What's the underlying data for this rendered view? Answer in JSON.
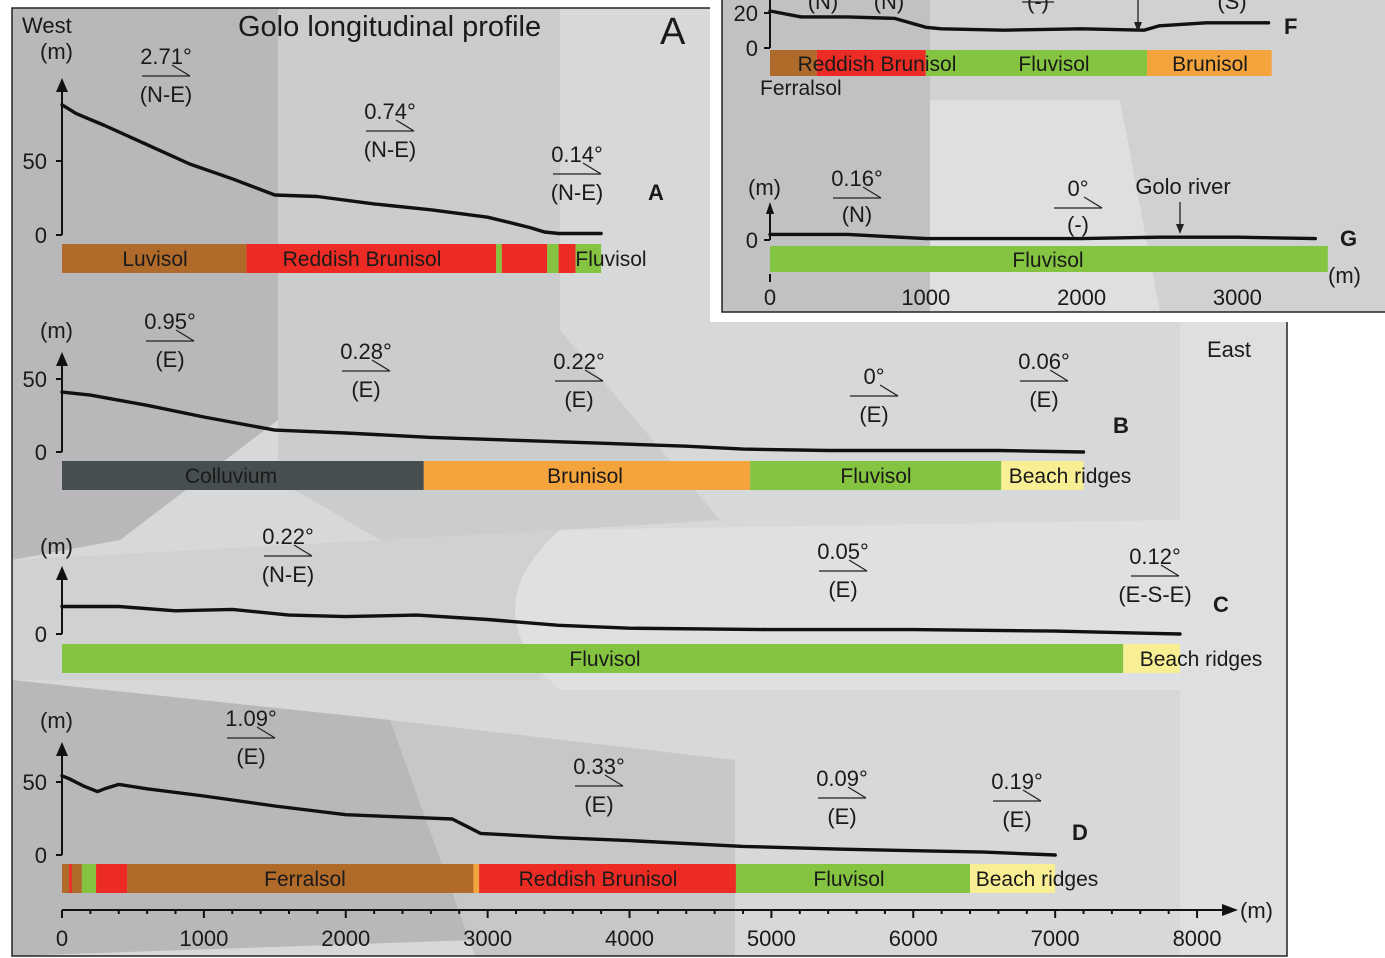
{
  "title": "Golo longitudinal profile",
  "panel_letter": "A",
  "side_labels": {
    "west": "West",
    "east": "East"
  },
  "colors": {
    "Luvisol": "#b06a2a",
    "Reddish Brunisol": "#ec2c24",
    "Fluvisol": "#85c440",
    "Colluvium": "#474e4f",
    "Brunisol": "#f4a43c",
    "Beach ridges": "#f8ef94",
    "Ferralsol": "#b06a2a",
    "bg_dark": "#b8b8ba",
    "bg_mid": "#cbccce",
    "bg_light": "#d7d8da",
    "bg_lighter": "#dfe0e2"
  },
  "main_x_axis": {
    "ticks": [
      "0",
      "1000",
      "2000",
      "3000",
      "4000",
      "5000",
      "6000",
      "7000",
      "8000"
    ],
    "unit": "(m)"
  },
  "inset_x_axis": {
    "ticks": [
      "0",
      "1000",
      "2000",
      "3000"
    ],
    "unit": "(m)"
  },
  "profiles": [
    {
      "id": "A",
      "y_unit": "(m)",
      "y_ticks": [
        "50",
        "0"
      ],
      "slopes": [
        {
          "angle": "2.71°",
          "dir": "(N-E)"
        },
        {
          "angle": "0.74°",
          "dir": "(N-E)"
        },
        {
          "angle": "0.14°",
          "dir": "(N-E)"
        }
      ],
      "soils": [
        {
          "name": "Luvisol",
          "x0": 0,
          "x1": 1300
        },
        {
          "name": "Reddish Brunisol",
          "x0": 1300,
          "x1": 3060
        },
        {
          "name": "Fluvisol",
          "x0": 3060,
          "x1": 3100
        },
        {
          "name": "Reddish Brunisol",
          "x0": 3100,
          "x1": 3420
        },
        {
          "name": "Fluvisol",
          "x0": 3420,
          "x1": 3500
        },
        {
          "name": "Reddish Brunisol",
          "x0": 3500,
          "x1": 3620
        },
        {
          "name": "Fluvisol",
          "x0": 3620,
          "x1": 3800
        }
      ],
      "soil_labels": [
        "Luvisol",
        "Reddish Brunisol",
        "Fluvisol"
      ],
      "elevation": {
        "x": [
          0,
          100,
          300,
          600,
          900,
          1200,
          1500,
          1800,
          2200,
          2600,
          3000,
          3300,
          3400,
          3500,
          3800
        ],
        "y": [
          88,
          82,
          74,
          61,
          48,
          38,
          27,
          26,
          21,
          17,
          12,
          5,
          2,
          1,
          1
        ]
      }
    },
    {
      "id": "B",
      "y_unit": "(m)",
      "y_ticks": [
        "50",
        "0"
      ],
      "slopes": [
        {
          "angle": "0.95°",
          "dir": "(E)"
        },
        {
          "angle": "0.28°",
          "dir": "(E)"
        },
        {
          "angle": "0.22°",
          "dir": "(E)"
        },
        {
          "angle": "0°",
          "dir": "(E)"
        },
        {
          "angle": "0.06°",
          "dir": "(E)"
        }
      ],
      "soils": [
        {
          "name": "Colluvium",
          "x0": 0,
          "x1": 2550
        },
        {
          "name": "Brunisol",
          "x0": 2550,
          "x1": 4850
        },
        {
          "name": "Fluvisol",
          "x0": 4850,
          "x1": 6620
        },
        {
          "name": "Beach ridges",
          "x0": 6620,
          "x1": 7200
        }
      ],
      "soil_labels": [
        "Colluvium",
        "Brunisol",
        "Fluvisol",
        "Beach ridges"
      ],
      "elevation": {
        "x": [
          0,
          200,
          600,
          1000,
          1500,
          2000,
          2600,
          3200,
          3800,
          4400,
          4800,
          5400,
          6000,
          6600,
          7200
        ],
        "y": [
          41,
          39,
          32,
          24,
          15,
          13,
          10,
          8,
          6,
          4,
          2,
          1,
          1,
          1,
          0
        ]
      }
    },
    {
      "id": "C",
      "y_unit": "(m)",
      "y_ticks": [
        "0"
      ],
      "slopes": [
        {
          "angle": "0.22°",
          "dir": "(N-E)"
        },
        {
          "angle": "0.05°",
          "dir": "(E)"
        },
        {
          "angle": "0.12°",
          "dir": "(E-S-E)"
        }
      ],
      "soils": [
        {
          "name": "Fluvisol",
          "x0": 0,
          "x1": 7480
        },
        {
          "name": "Beach ridges",
          "x0": 7480,
          "x1": 7880
        }
      ],
      "soil_labels": [
        "Fluvisol",
        "Beach ridges"
      ],
      "elevation": {
        "x": [
          0,
          400,
          800,
          1200,
          1600,
          2000,
          2500,
          3000,
          3500,
          4000,
          5000,
          6000,
          7000,
          7880
        ],
        "y": [
          19,
          19,
          16,
          17,
          13,
          12,
          13,
          10,
          6,
          4,
          3,
          3,
          2,
          0
        ]
      }
    },
    {
      "id": "D",
      "y_unit": "(m)",
      "y_ticks": [
        "50",
        "0"
      ],
      "slopes": [
        {
          "angle": "1.09°",
          "dir": "(E)"
        },
        {
          "angle": "0.33°",
          "dir": "(E)"
        },
        {
          "angle": "0.09°",
          "dir": "(E)"
        },
        {
          "angle": "0.19°",
          "dir": "(E)"
        }
      ],
      "soils": [
        {
          "name": "Ferralsol",
          "x0": 0,
          "x1": 50
        },
        {
          "name": "Reddish Brunisol",
          "x0": 50,
          "x1": 70
        },
        {
          "name": "Ferralsol",
          "x0": 70,
          "x1": 140
        },
        {
          "name": "Fluvisol",
          "x0": 140,
          "x1": 240
        },
        {
          "name": "Reddish Brunisol",
          "x0": 240,
          "x1": 460
        },
        {
          "name": "Ferralsol",
          "x0": 460,
          "x1": 2900
        },
        {
          "name": "Brunisol",
          "x0": 2900,
          "x1": 2940
        },
        {
          "name": "Reddish Brunisol",
          "x0": 2940,
          "x1": 4750
        },
        {
          "name": "Fluvisol",
          "x0": 4750,
          "x1": 6400
        },
        {
          "name": "Beach ridges",
          "x0": 6400,
          "x1": 7000
        }
      ],
      "soil_labels": [
        "Ferralsol",
        "Reddish Brunisol",
        "Fluvisol",
        "Beach ridges"
      ],
      "elevation": {
        "x": [
          0,
          50,
          150,
          250,
          300,
          400,
          600,
          1000,
          1500,
          2000,
          2500,
          2750,
          2850,
          2950,
          3500,
          4000,
          4800,
          5500,
          6500,
          7000
        ],
        "y": [
          55,
          53,
          48,
          44,
          46,
          49,
          46,
          41,
          34,
          28,
          26,
          25,
          20,
          15,
          12,
          10,
          6,
          4,
          2,
          0
        ]
      }
    }
  ],
  "inset": {
    "profile_F": {
      "id": "F",
      "y_ticks": [
        "20",
        "0"
      ],
      "slope_dirs": [
        "(N)",
        "(N)",
        "(-)",
        "(S)"
      ],
      "soils": [
        {
          "name": "Ferralsol",
          "x0": 0,
          "x1": 300
        },
        {
          "name": "Reddish Brunisol",
          "x0": 300,
          "x1": 1000
        },
        {
          "name": "Fluvisol",
          "x0": 1000,
          "x1": 2420
        },
        {
          "name": "Brunisol",
          "x0": 2420,
          "x1": 3220
        }
      ],
      "soil_labels": [
        "Reddish Brunisol",
        "Fluvisol",
        "Brunisol"
      ],
      "ferralsol_label": "Ferralsol",
      "elevation": {
        "x": [
          0,
          200,
          500,
          800,
          1000,
          1100,
          1500,
          2000,
          2400,
          2500,
          2800,
          3200
        ],
        "y": [
          25,
          21,
          21,
          20,
          14,
          13,
          12,
          13,
          12,
          15,
          17,
          17
        ]
      }
    },
    "profile_G": {
      "id": "G",
      "y_unit": "(m)",
      "y_ticks": [
        "0"
      ],
      "slopes": [
        {
          "angle": "0.16°",
          "dir": "(N)"
        },
        {
          "angle": "0°",
          "dir": "(-)"
        }
      ],
      "river_label": "Golo river",
      "soils": [
        {
          "name": "Fluvisol",
          "x0": 0,
          "x1": 3580
        }
      ],
      "soil_labels": [
        "Fluvisol"
      ],
      "elevation": {
        "x": [
          0,
          500,
          1000,
          1500,
          2000,
          2500,
          3000,
          3500
        ],
        "y": [
          4,
          4,
          1,
          1,
          1,
          2,
          2,
          1
        ]
      }
    }
  }
}
